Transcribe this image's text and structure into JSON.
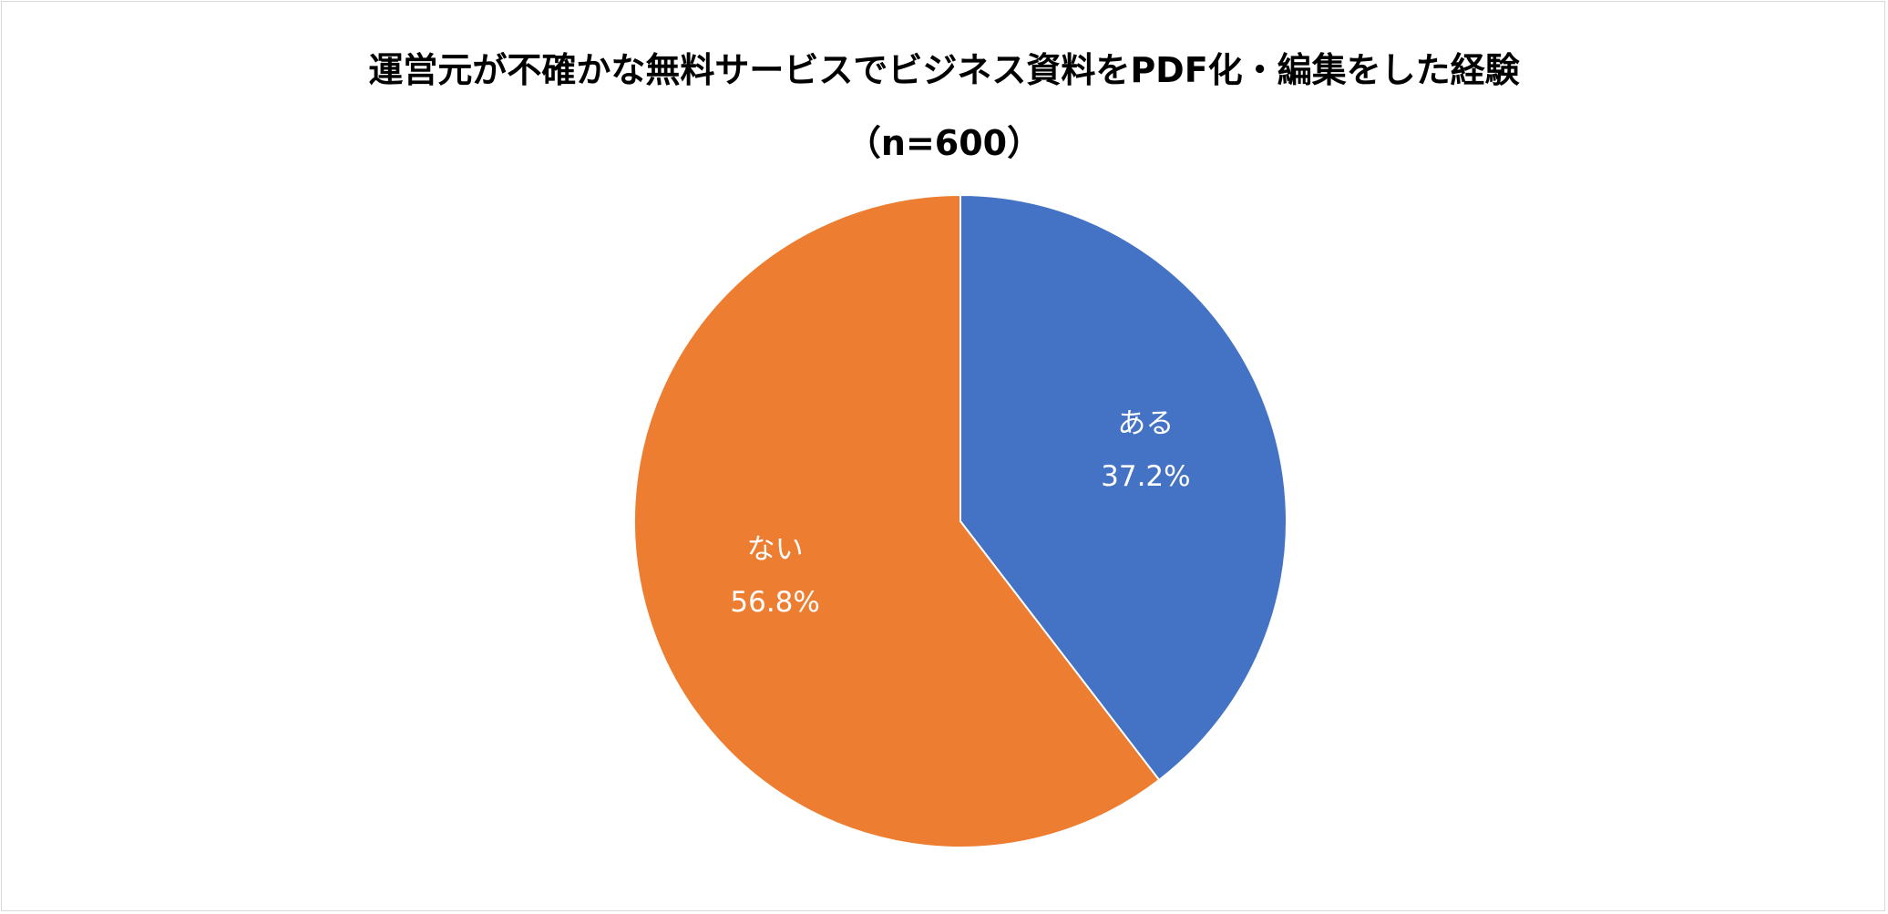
{
  "chart_data": {
    "type": "pie",
    "title": "運営元が不確かな無料サービスでビジネス資料をPDF化・編集をした経験",
    "subtitle": "（n=600）",
    "slices": [
      {
        "label": "ある",
        "value": 37.2,
        "value_label": "37.2%",
        "color": "#4472C4"
      },
      {
        "label": "ない",
        "value": 56.8,
        "value_label": "56.8%",
        "color": "#ED7D31"
      }
    ],
    "legend": false
  }
}
